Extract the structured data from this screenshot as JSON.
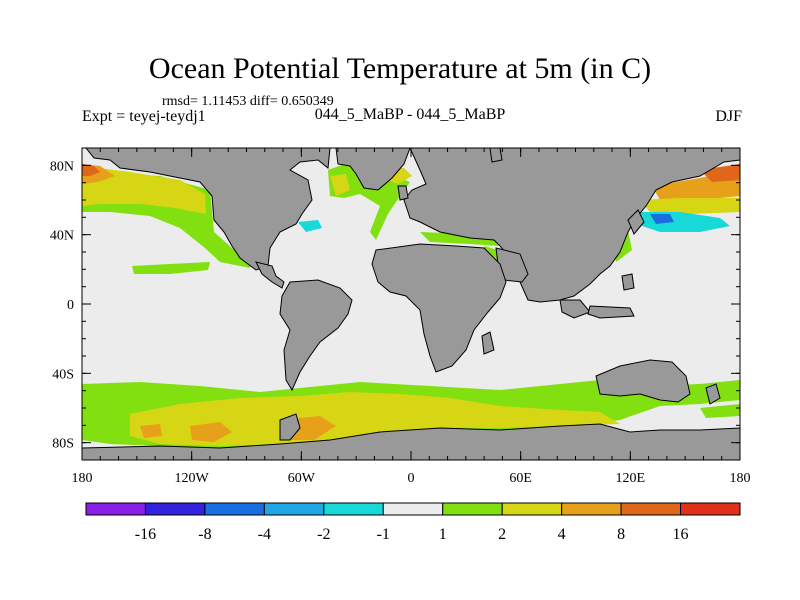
{
  "title": "Ocean Potential Temperature at 5m (in C)",
  "stats": "rmsd= 1.11453 diff= 0.650349",
  "expt": "Expt = teyej-teydj1",
  "experiment_name": "044_5_MaBP - 044_5_MaBP",
  "season": "DJF",
  "map": {
    "lon_range": [
      -180,
      180
    ],
    "lat_range": [
      -90,
      90
    ],
    "y_ticks": [
      {
        "lat": 80,
        "label": "80N"
      },
      {
        "lat": 40,
        "label": "40N"
      },
      {
        "lat": 0,
        "label": "0"
      },
      {
        "lat": -40,
        "label": "40S"
      },
      {
        "lat": -80,
        "label": "80S"
      }
    ],
    "x_ticks": [
      {
        "lon": -180,
        "label": "180"
      },
      {
        "lon": -120,
        "label": "120W"
      },
      {
        "lon": -60,
        "label": "60W"
      },
      {
        "lon": 0,
        "label": "0"
      },
      {
        "lon": 60,
        "label": "60E"
      },
      {
        "lon": 120,
        "label": "120E"
      },
      {
        "lon": 180,
        "label": "180"
      }
    ]
  },
  "colorbar": {
    "labels": [
      "-16",
      "-8",
      "-4",
      "-2",
      "-1",
      "1",
      "2",
      "4",
      "8",
      "16"
    ],
    "colors": [
      "#8a1fe6",
      "#3322dd",
      "#1a6fe0",
      "#20a8e6",
      "#18d8d8",
      "#ececec",
      "#82e010",
      "#d6d614",
      "#e6a019",
      "#e0661a",
      "#e0301a"
    ]
  },
  "colors": {
    "land": "#999999",
    "ocean_neutral": "#ececec",
    "green": "#82e010",
    "yellow": "#d6d614",
    "orange": "#e6a019",
    "red_orange": "#e0661a",
    "cyan": "#18d8d8",
    "blue": "#1a6fe0"
  }
}
